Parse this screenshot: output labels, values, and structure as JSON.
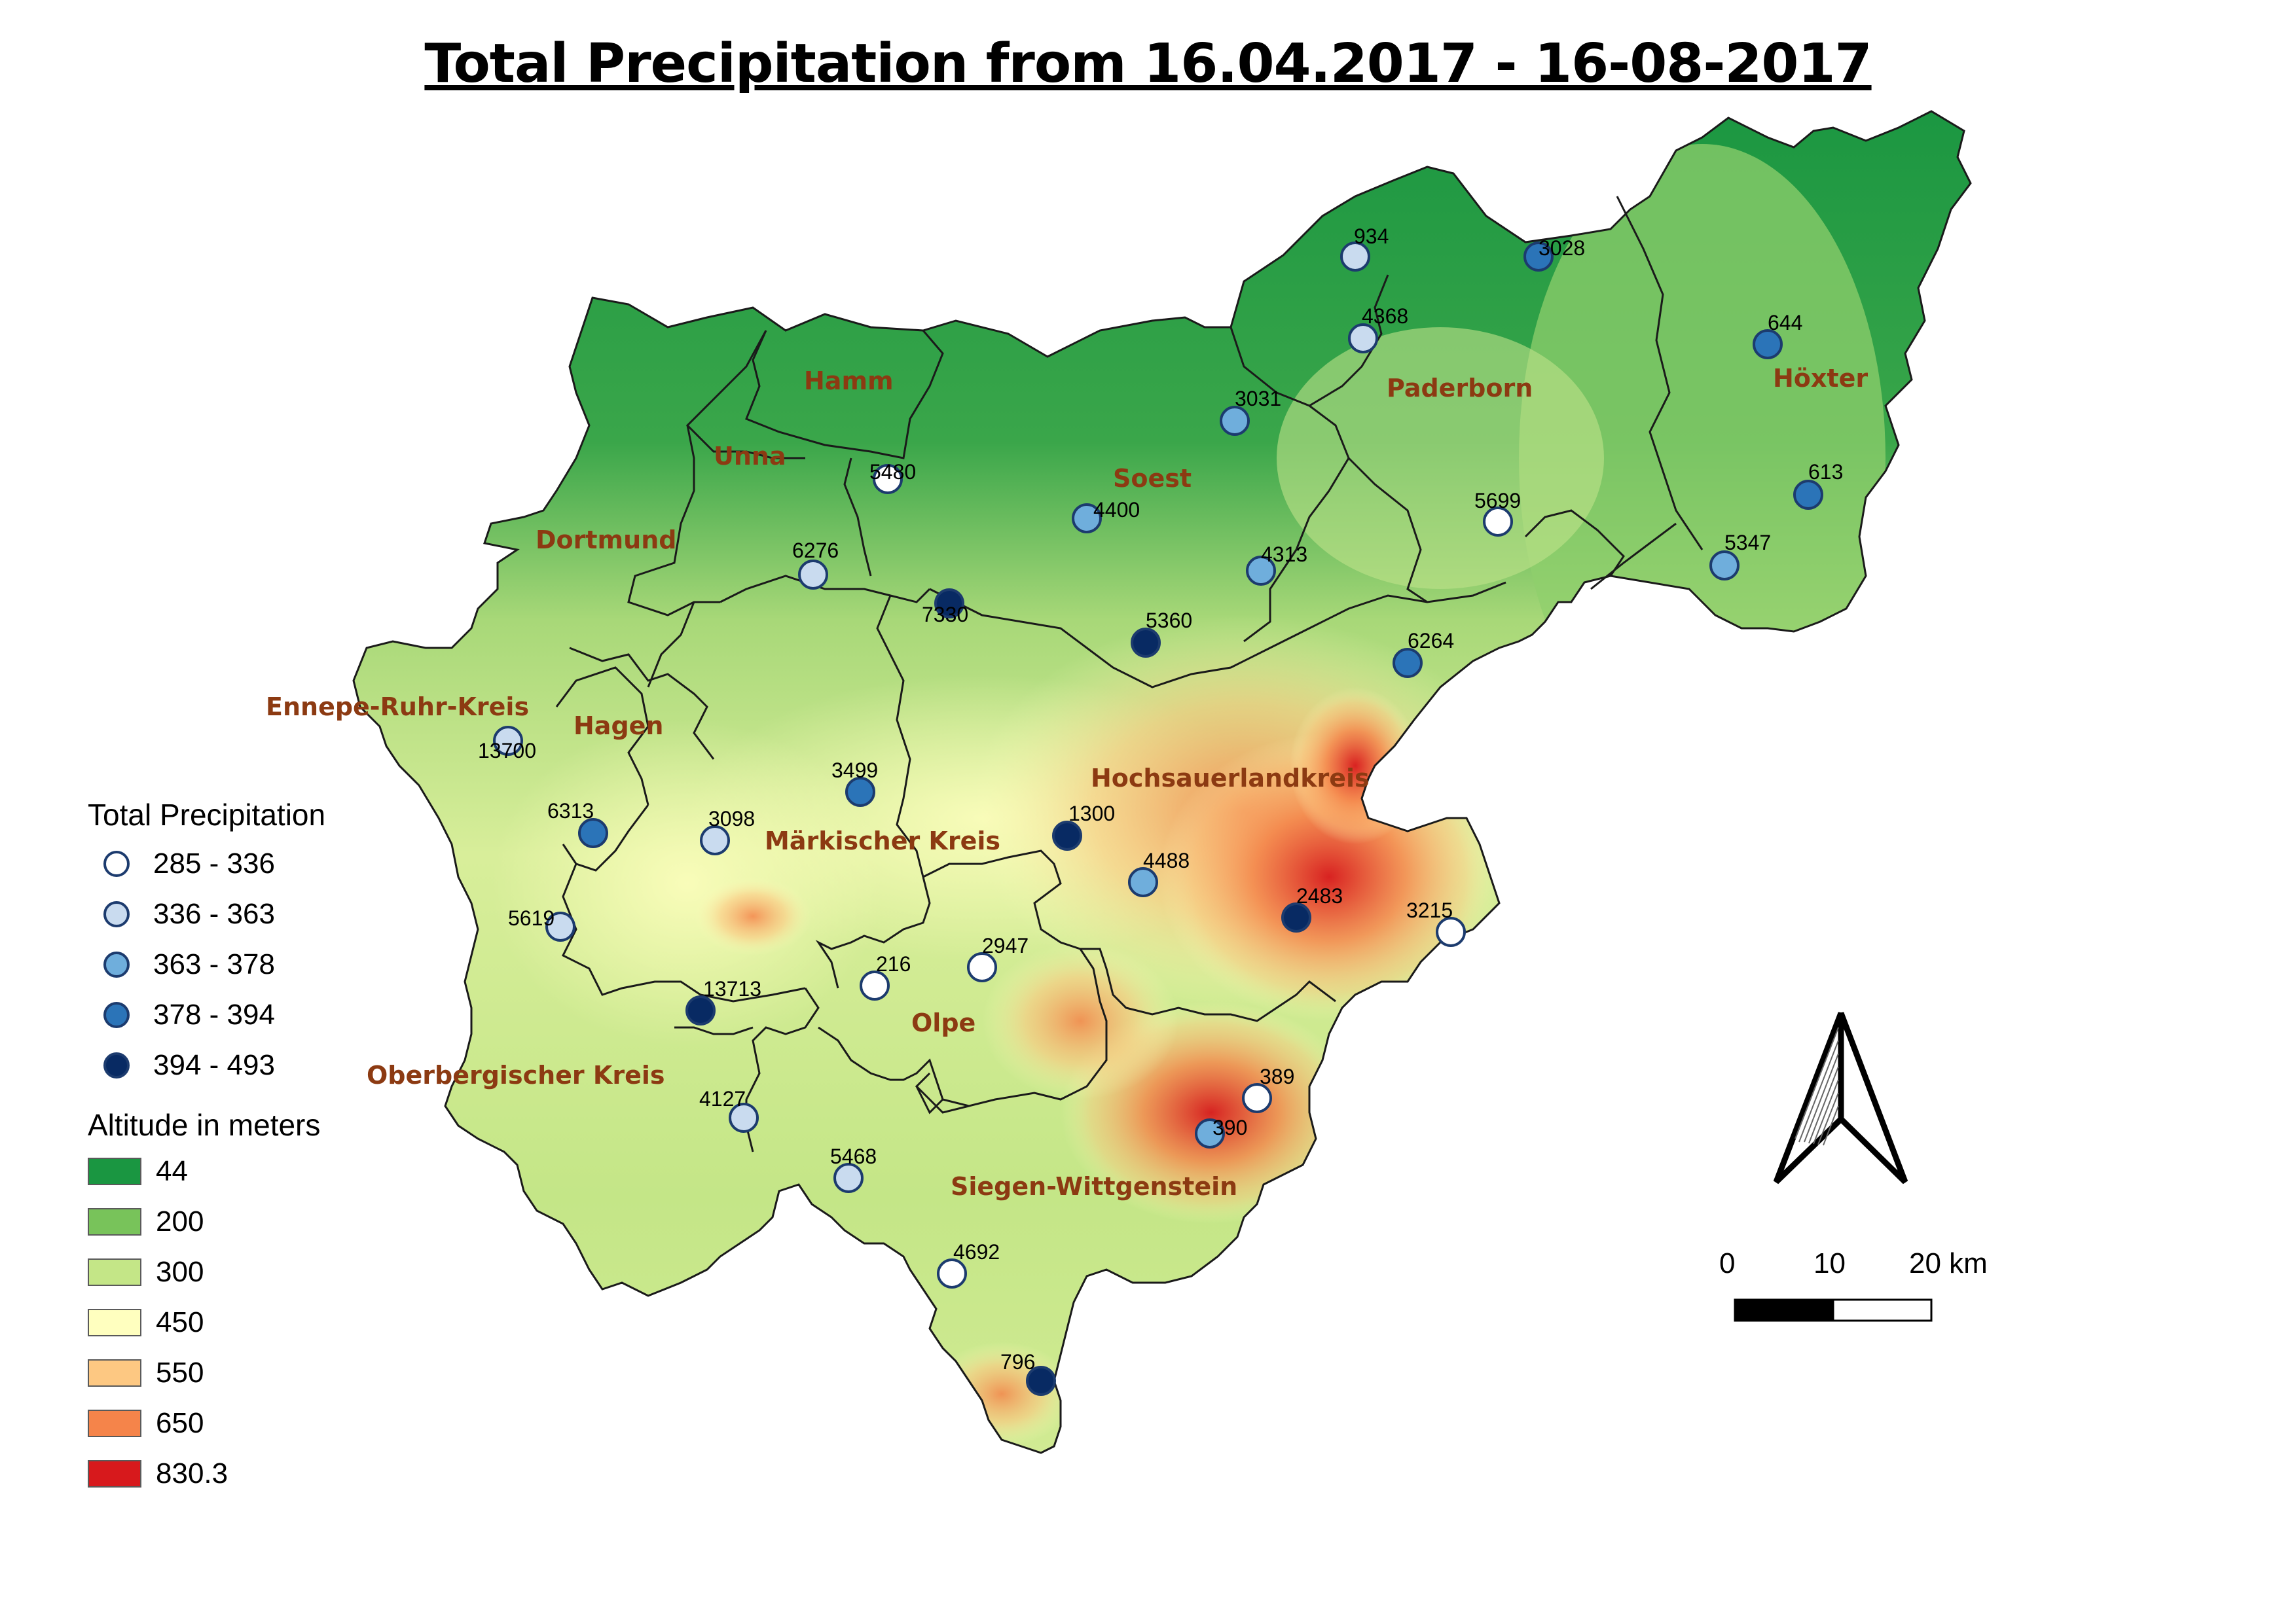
{
  "title": "Total  Precipitation from 16.04.2017 - 16-08-2017",
  "districts": [
    {
      "name": "Hamm"
    },
    {
      "name": "Unna"
    },
    {
      "name": "Dortmund"
    },
    {
      "name": "Soest"
    },
    {
      "name": "Paderborn"
    },
    {
      "name": "Höxter"
    },
    {
      "name": "Ennepe-Ruhr-Kreis"
    },
    {
      "name": "Hagen"
    },
    {
      "name": "Märkischer Kreis"
    },
    {
      "name": "Hochsauerlandkreis"
    },
    {
      "name": "Olpe"
    },
    {
      "name": "Oberbergischer Kreis"
    },
    {
      "name": "Siegen-Wittgenstein"
    }
  ],
  "stations": [
    {
      "id": "934",
      "class": 1
    },
    {
      "id": "3028",
      "class": 3
    },
    {
      "id": "4368",
      "class": 1
    },
    {
      "id": "644",
      "class": 3
    },
    {
      "id": "3031",
      "class": 2
    },
    {
      "id": "5480",
      "class": 0
    },
    {
      "id": "4400",
      "class": 2
    },
    {
      "id": "5699",
      "class": 0
    },
    {
      "id": "613",
      "class": 3
    },
    {
      "id": "6276",
      "class": 1
    },
    {
      "id": "4313",
      "class": 2
    },
    {
      "id": "5347",
      "class": 2
    },
    {
      "id": "7330",
      "class": 4
    },
    {
      "id": "5360",
      "class": 4
    },
    {
      "id": "6264",
      "class": 3
    },
    {
      "id": "13700",
      "class": 1
    },
    {
      "id": "3499",
      "class": 3
    },
    {
      "id": "6313",
      "class": 3
    },
    {
      "id": "3098",
      "class": 1
    },
    {
      "id": "1300",
      "class": 4
    },
    {
      "id": "4488",
      "class": 2
    },
    {
      "id": "2483",
      "class": 4
    },
    {
      "id": "3215",
      "class": 0
    },
    {
      "id": "5619",
      "class": 1
    },
    {
      "id": "216",
      "class": 0
    },
    {
      "id": "2947",
      "class": 0
    },
    {
      "id": "13713",
      "class": 4
    },
    {
      "id": "389",
      "class": 0
    },
    {
      "id": "390",
      "class": 2
    },
    {
      "id": "4127",
      "class": 1
    },
    {
      "id": "5468",
      "class": 1
    },
    {
      "id": "4692",
      "class": 0
    },
    {
      "id": "796",
      "class": 4
    }
  ],
  "legend": {
    "precipitation_title": "Total Precipitation",
    "precipitation_classes": [
      {
        "label": "285 - 336",
        "color": "#ffffff"
      },
      {
        "label": "336 - 363",
        "color": "#c9dbef"
      },
      {
        "label": "363 - 378",
        "color": "#6faedc"
      },
      {
        "label": "378 - 394",
        "color": "#2b74b8"
      },
      {
        "label": "394 - 493",
        "color": "#082a63"
      }
    ],
    "altitude_title": "Altitude in meters",
    "altitude_classes": [
      {
        "label": "44",
        "color": "#1a9641"
      },
      {
        "label": "200",
        "color": "#78c35a"
      },
      {
        "label": "300",
        "color": "#c4e687"
      },
      {
        "label": "450",
        "color": "#ffffbf"
      },
      {
        "label": "550",
        "color": "#fdc882"
      },
      {
        "label": "650",
        "color": "#f5844a"
      },
      {
        "label": "830.3",
        "color": "#d7191c"
      }
    ]
  },
  "scale_bar": {
    "labels": [
      "0",
      "10",
      "20 km"
    ]
  },
  "north_arrow_icon": "north-arrow-icon"
}
